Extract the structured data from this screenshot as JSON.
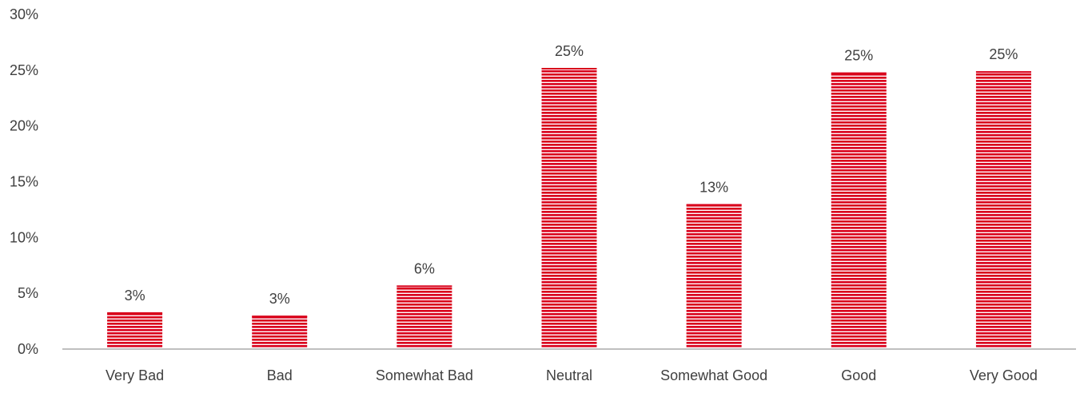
{
  "chart_data": {
    "type": "bar",
    "title": "",
    "xlabel": "",
    "ylabel": "",
    "categories": [
      "Very Bad",
      "Bad",
      "Somewhat Bad",
      "Neutral",
      "Somewhat Good",
      "Good",
      "Very Good"
    ],
    "values": [
      3.3,
      3.0,
      5.7,
      25.2,
      13.0,
      24.8,
      24.9
    ],
    "data_labels": [
      "3%",
      "3%",
      "6%",
      "25%",
      "13%",
      "25%",
      "25%"
    ],
    "ylim": [
      0,
      30
    ],
    "y_ticks": [
      0,
      5,
      10,
      15,
      20,
      25,
      30
    ],
    "y_tick_labels": [
      "0%",
      "5%",
      "10%",
      "15%",
      "20%",
      "25%",
      "30%"
    ],
    "grid": false,
    "legend": "none",
    "colors": {
      "bar_fill": "#d9001b",
      "bar_stripe": "#ffffff",
      "axis": "#bfbfbf",
      "text": "#404040"
    }
  }
}
